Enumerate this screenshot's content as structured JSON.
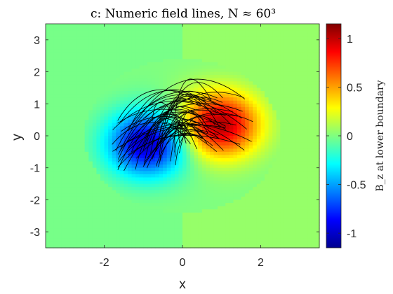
{
  "chart_data": {
    "type": "heatmap",
    "title": "c: Numeric field lines, N ≈ 60³",
    "xlabel": "x",
    "ylabel": "y",
    "xlim": [
      -3.5,
      3.5
    ],
    "ylim": [
      -3.5,
      3.5
    ],
    "xticks": [
      -2,
      0,
      2
    ],
    "yticks": [
      3,
      2,
      1,
      0,
      -1,
      -2,
      -3
    ],
    "colorbar": {
      "label": "B_z at lower boundary",
      "range": [
        -1.15,
        1.15
      ],
      "ticks": [
        1,
        0.5,
        0,
        -0.5,
        -1
      ],
      "colormap": "jet"
    },
    "field": {
      "background_left": -0.02,
      "background_right": 0.05,
      "patch_radius": 2.5,
      "negative_pole": {
        "x": -0.9,
        "y": -0.25,
        "peak": -1.0
      },
      "positive_pole": {
        "x": 0.95,
        "y": 0.35,
        "peak": 1.05
      }
    },
    "field_lines": {
      "count": 60,
      "color": "#000000"
    }
  }
}
